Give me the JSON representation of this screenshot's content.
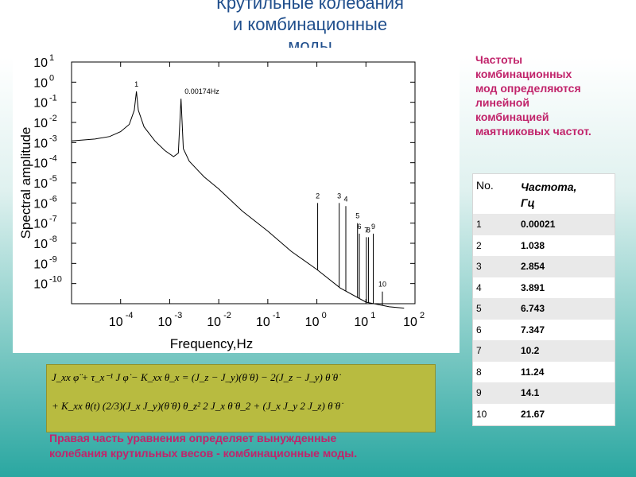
{
  "slide": {
    "title_line1": "Крутильные колебания",
    "title_line2": "и комбинационные",
    "title_line3": "моды"
  },
  "side_note": "Частоты\nкомбинационных\nмод определяются\nлинейной\nкомбинацией\nмаятниковых частот.",
  "table": {
    "header_no": "No.",
    "header_freq": "Частота,\nГц",
    "rows": [
      {
        "no": "1",
        "freq": "0.00021"
      },
      {
        "no": "2",
        "freq": "1.038"
      },
      {
        "no": "3",
        "freq": "2.854"
      },
      {
        "no": "4",
        "freq": "3.891"
      },
      {
        "no": "5",
        "freq": "6.743"
      },
      {
        "no": "6",
        "freq": "7.347"
      },
      {
        "no": "7",
        "freq": "10.2"
      },
      {
        "no": "8",
        "freq": "11.24"
      },
      {
        "no": "9",
        "freq": "14.1"
      },
      {
        "no": "10",
        "freq": "21.67"
      }
    ]
  },
  "equation": {
    "line1": "J_xx φ̈ + τ_x⁻¹ J φ̇ − K_xx θ_x = (J_z − J_y)(θ̇ θ̇) − 2(J_z − J_y) θ̇ θ̇",
    "line2": "+ K_xx θ(t)   (2/3)(J_x   J_y)(θ̇   θ̇) θ_z²   2 J_x θ̇ θ_2 + (J_x   J_y   2 J_z) θ̇ θ̇"
  },
  "bottom_note": "Правая часть уравнения определяет вынужденные\nколебания крутильных весов - комбинационные моды.",
  "chart_data": {
    "type": "line",
    "xlabel": "Frequency,Hz",
    "ylabel": "Spectral amplitude",
    "x_scale": "log",
    "y_scale": "log",
    "xlim": [
      1e-05,
      100
    ],
    "ylim": [
      1e-11,
      10
    ],
    "x_tick_labels": [
      {
        "value": 0.0001,
        "base": "10",
        "exp": "-4"
      },
      {
        "value": 0.001,
        "base": "10",
        "exp": "-3"
      },
      {
        "value": 0.01,
        "base": "10",
        "exp": "-2"
      },
      {
        "value": 0.1,
        "base": "10",
        "exp": "-1"
      },
      {
        "value": 1,
        "base": "10",
        "exp": "0"
      },
      {
        "value": 10,
        "base": "10",
        "exp": "1"
      },
      {
        "value": 100,
        "base": "10",
        "exp": "2"
      }
    ],
    "y_tick_labels": [
      {
        "value": 10,
        "base": "10",
        "exp": "1"
      },
      {
        "value": 1,
        "base": "10",
        "exp": "0"
      },
      {
        "value": 0.1,
        "base": "10",
        "exp": "-1"
      },
      {
        "value": 0.01,
        "base": "10",
        "exp": "-2"
      },
      {
        "value": 0.001,
        "base": "10",
        "exp": "-3"
      },
      {
        "value": 0.0001,
        "base": "10",
        "exp": "-4"
      },
      {
        "value": 1e-05,
        "base": "10",
        "exp": "-5"
      },
      {
        "value": 1e-06,
        "base": "10",
        "exp": "-6"
      },
      {
        "value": 1e-07,
        "base": "10",
        "exp": "-7"
      },
      {
        "value": 1e-08,
        "base": "10",
        "exp": "-8"
      },
      {
        "value": 1e-09,
        "base": "10",
        "exp": "-9"
      },
      {
        "value": 1e-10,
        "base": "10",
        "exp": "-10"
      }
    ],
    "series": [
      {
        "color": "#000000",
        "points": [
          [
            1e-05,
            0.0012
          ],
          [
            3e-05,
            0.0015
          ],
          [
            6e-05,
            0.002
          ],
          [
            0.0001,
            0.0035
          ],
          [
            0.00015,
            0.008
          ],
          [
            0.00019,
            0.04
          ],
          [
            0.00021,
            0.35
          ],
          [
            0.00023,
            0.04
          ],
          [
            0.0003,
            0.006
          ],
          [
            0.0005,
            0.0012
          ],
          [
            0.0008,
            0.0004
          ],
          [
            0.0012,
            0.0002
          ],
          [
            0.0015,
            0.0003
          ],
          [
            0.0017,
            0.15
          ],
          [
            0.0019,
            0.0005
          ],
          [
            0.0025,
            0.00012
          ],
          [
            0.005,
            2e-05
          ],
          [
            0.01,
            5e-06
          ],
          [
            0.03,
            4e-07
          ],
          [
            0.1,
            4e-08
          ],
          [
            0.3,
            4e-09
          ],
          [
            1,
            5e-10
          ],
          [
            3,
            6e-11
          ],
          [
            10,
            1.2e-11
          ],
          [
            30,
            7e-12
          ],
          [
            60,
            6e-12
          ]
        ]
      }
    ],
    "peaks": [
      {
        "label": "1",
        "freq": 0.00021,
        "amp": 0.35
      },
      {
        "label": "0.00174Hz",
        "freq": 0.00174,
        "amp": 0.15
      },
      {
        "label": "2",
        "freq": 1.038,
        "amp": 1e-06
      },
      {
        "label": "3",
        "freq": 2.854,
        "amp": 1e-06
      },
      {
        "label": "4",
        "freq": 3.891,
        "amp": 7e-07
      },
      {
        "label": "5",
        "freq": 6.743,
        "amp": 1e-07
      },
      {
        "label": "6",
        "freq": 7.347,
        "amp": 3e-08
      },
      {
        "label": "7",
        "freq": 10.2,
        "amp": 2e-08
      },
      {
        "label": "8",
        "freq": 11.24,
        "amp": 2e-08
      },
      {
        "label": "9",
        "freq": 14.1,
        "amp": 3e-08
      },
      {
        "label": "10",
        "freq": 21.67,
        "amp": 4e-11
      }
    ]
  }
}
